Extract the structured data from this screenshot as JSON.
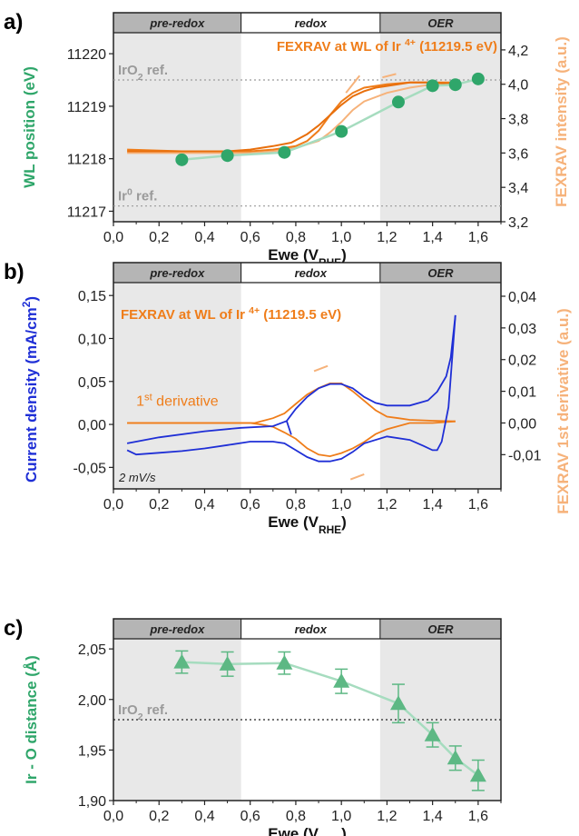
{
  "colors": {
    "green": "#2fa66a",
    "light_green": "#a6dcbf",
    "green_tri": "#5db884",
    "orange": "#ef7d1a",
    "light_orange": "#f6b27a",
    "blue": "#1f2fd6",
    "shade": "#e8e8e8",
    "region_bar": "#b5b5b5",
    "ref_gray": "#9a9a9a"
  },
  "regions": {
    "labels": [
      "pre-redox",
      "redox",
      "OER"
    ],
    "bounds": [
      [
        0.0,
        0.56
      ],
      [
        0.56,
        1.17
      ],
      [
        1.17,
        1.7
      ]
    ]
  },
  "chart_data": [
    {
      "panel": "a)",
      "type": "scatter",
      "xlabel": "Ewe (V",
      "xlabel_sub": "RHE",
      "xlabel_close": ")",
      "ylabel": "WL position (eV)",
      "y2label": "FEXRAV intensity (a.u.)",
      "xlim": [
        0.0,
        1.7
      ],
      "ylim": [
        11216.8,
        11220.4
      ],
      "y2lim": [
        3.2,
        4.3
      ],
      "xticks": [
        "0,0",
        "0,2",
        "0,4",
        "0,6",
        "0,8",
        "1,0",
        "1,2",
        "1,4",
        "1,6"
      ],
      "xtick_values": [
        0.0,
        0.2,
        0.4,
        0.6,
        0.8,
        1.0,
        1.2,
        1.4,
        1.6
      ],
      "yticks": [
        "11217",
        "11218",
        "11219",
        "11220"
      ],
      "ytick_values": [
        11217,
        11218,
        11219,
        11220
      ],
      "y2ticks": [
        "3,2",
        "3,4",
        "3,6",
        "3,8",
        "4,0",
        "4,2"
      ],
      "y2tick_values": [
        3.2,
        3.4,
        3.6,
        3.8,
        4.0,
        4.2
      ],
      "annotation": "FEXRAV at WL of Ir",
      "annotation_sup": "4+",
      "annotation_end": "(11219.5 eV)",
      "refs": [
        {
          "label": "IrO",
          "sub": "2",
          "label_end": " ref.",
          "sup": "",
          "y": 11219.5
        },
        {
          "label": "Ir",
          "sub": "",
          "label_end": " ref.",
          "sup": "0",
          "y": 11217.1
        }
      ],
      "series": [
        {
          "x": [
            0.3,
            0.5,
            0.75,
            1.0,
            1.25,
            1.4,
            1.5,
            1.6
          ],
          "y": [
            11217.98,
            11218.06,
            11218.12,
            11218.52,
            11219.08,
            11219.39,
            11219.41,
            11219.52
          ]
        }
      ],
      "fexrav_y2": {
        "curve1": {
          "x": [
            0.06,
            0.3,
            0.5,
            0.6,
            0.7,
            0.78,
            0.85,
            0.9,
            0.95,
            1.0,
            1.05,
            1.1,
            1.15,
            1.2,
            1.3,
            1.4,
            1.5
          ],
          "y": [
            3.61,
            3.61,
            3.61,
            3.62,
            3.64,
            3.66,
            3.71,
            3.76,
            3.82,
            3.88,
            3.93,
            3.96,
            3.98,
            3.99,
            4.01,
            4.01,
            4.0
          ]
        },
        "curve2": {
          "x": [
            1.5,
            1.4,
            1.3,
            1.2,
            1.1,
            1.05,
            1.0,
            0.95,
            0.9,
            0.85,
            0.8,
            0.75,
            0.7,
            0.6,
            0.5,
            0.3,
            0.06
          ],
          "y": [
            4.01,
            4.01,
            4.01,
            4.0,
            3.98,
            3.95,
            3.9,
            3.82,
            3.73,
            3.67,
            3.64,
            3.63,
            3.62,
            3.61,
            3.61,
            3.61,
            3.62
          ]
        },
        "curve3": {
          "x": [
            0.06,
            0.3,
            0.5,
            0.6,
            0.7,
            0.8,
            0.9,
            0.95,
            1.0,
            1.05,
            1.1,
            1.2,
            1.3,
            1.4,
            1.5
          ],
          "y": [
            3.6,
            3.6,
            3.6,
            3.6,
            3.61,
            3.63,
            3.67,
            3.72,
            3.78,
            3.85,
            3.9,
            3.95,
            3.98,
            4.0,
            4.0
          ]
        }
      }
    },
    {
      "panel": "b)",
      "type": "line",
      "xlabel": "Ewe (V",
      "xlabel_sub": "RHE",
      "xlabel_close": ")",
      "ylabel": "Current density (mA/cm",
      "ylabel_sup": "2",
      "ylabel_close": ")",
      "y2label": "FEXRAV 1st derivative (a.u.)",
      "xlim": [
        0.0,
        1.7
      ],
      "ylim": [
        -0.075,
        0.165
      ],
      "y2lim": [
        -0.0208,
        0.0443
      ],
      "xticks": [
        "0,0",
        "0,2",
        "0,4",
        "0,6",
        "0,8",
        "1,0",
        "1,2",
        "1,4",
        "1,6"
      ],
      "xtick_values": [
        0.0,
        0.2,
        0.4,
        0.6,
        0.8,
        1.0,
        1.2,
        1.4,
        1.6
      ],
      "yticks": [
        "-0,05",
        "0,00",
        "0,05",
        "0,10",
        "0,15"
      ],
      "ytick_values": [
        -0.05,
        0.0,
        0.05,
        0.1,
        0.15
      ],
      "y2ticks": [
        "-0,01",
        "0,00",
        "0,01",
        "0,02",
        "0,03",
        "0,04"
      ],
      "y2tick_values": [
        -0.01,
        0.0,
        0.01,
        0.02,
        0.03,
        0.04
      ],
      "annotation": "FEXRAV at WL of Ir",
      "annotation_sup": "4+",
      "annotation_end": "(11219.5 eV)",
      "derivative_label": "1",
      "derivative_sup": "st",
      "derivative_end": " derivative",
      "scan_rate": "2 mV/s",
      "cv": {
        "anodic": {
          "x": [
            0.06,
            0.2,
            0.4,
            0.56,
            0.7,
            0.76,
            0.8,
            0.85,
            0.9,
            0.95,
            1.0,
            1.05,
            1.1,
            1.15,
            1.2,
            1.3,
            1.38,
            1.42,
            1.46,
            1.48,
            1.5
          ],
          "y": [
            -0.022,
            -0.015,
            -0.008,
            -0.004,
            -0.002,
            0.004,
            0.018,
            0.032,
            0.042,
            0.047,
            0.047,
            0.042,
            0.032,
            0.025,
            0.022,
            0.022,
            0.028,
            0.038,
            0.056,
            0.078,
            0.127
          ]
        },
        "cathodic": {
          "x": [
            1.5,
            1.47,
            1.44,
            1.42,
            1.4,
            1.36,
            1.3,
            1.2,
            1.1,
            1.05,
            1.0,
            0.95,
            0.9,
            0.85,
            0.8,
            0.75,
            0.7,
            0.6,
            0.5,
            0.4,
            0.3,
            0.2,
            0.1,
            0.06
          ],
          "y": [
            0.127,
            0.02,
            -0.02,
            -0.03,
            -0.03,
            -0.025,
            -0.018,
            -0.014,
            -0.022,
            -0.032,
            -0.04,
            -0.043,
            -0.043,
            -0.038,
            -0.03,
            -0.022,
            -0.02,
            -0.02,
            -0.024,
            -0.028,
            -0.031,
            -0.033,
            -0.035,
            -0.03
          ]
        },
        "start_branch": {
          "x": [
            0.76,
            0.78
          ],
          "y": [
            0.004,
            -0.012
          ]
        }
      },
      "derivative": {
        "anodic": {
          "x": [
            0.06,
            0.2,
            0.4,
            0.5,
            0.56,
            0.62,
            0.7,
            0.75,
            0.8,
            0.85,
            0.9,
            0.95,
            1.0,
            1.05,
            1.1,
            1.15,
            1.2,
            1.25,
            1.3,
            1.4,
            1.5
          ],
          "y": [
            0.0,
            0.0,
            0.0,
            0.0,
            0.0,
            0.0,
            0.0015,
            0.003,
            0.006,
            0.009,
            0.011,
            0.0125,
            0.0125,
            0.01,
            0.007,
            0.004,
            0.002,
            0.0015,
            0.001,
            0.0007,
            0.0005
          ]
        },
        "cathodic": {
          "x": [
            1.5,
            1.4,
            1.3,
            1.2,
            1.15,
            1.1,
            1.05,
            1.0,
            0.95,
            0.9,
            0.85,
            0.8,
            0.75,
            0.7,
            0.65,
            0.6,
            0.5,
            0.4,
            0.2,
            0.06
          ],
          "y": [
            0.0005,
            0.0,
            0.0,
            -0.002,
            -0.0035,
            -0.006,
            -0.008,
            -0.0095,
            -0.0105,
            -0.01,
            -0.008,
            -0.005,
            -0.003,
            -0.0012,
            -0.0005,
            0.0,
            0.0,
            0.0,
            0.0,
            0.0
          ]
        }
      }
    },
    {
      "panel": "c)",
      "type": "scatter",
      "xlabel": "Ewe (V",
      "xlabel_sub": "RHE",
      "xlabel_close": ")",
      "ylabel": "Ir - O distance (Å)",
      "xlim": [
        0.0,
        1.7
      ],
      "ylim": [
        1.9,
        2.06
      ],
      "xticks": [
        "0,0",
        "0,2",
        "0,4",
        "0,6",
        "0,8",
        "1,0",
        "1,2",
        "1,4",
        "1,6"
      ],
      "xtick_values": [
        0.0,
        0.2,
        0.4,
        0.6,
        0.8,
        1.0,
        1.2,
        1.4,
        1.6
      ],
      "yticks": [
        "1,90",
        "1,95",
        "2,00",
        "2,05"
      ],
      "ytick_values": [
        1.9,
        1.95,
        2.0,
        2.05
      ],
      "refs": [
        {
          "label": "IrO",
          "sub": "2",
          "label_end": " ref.",
          "sup": "",
          "y": 1.98
        }
      ],
      "series": [
        {
          "x": [
            0.3,
            0.5,
            0.75,
            1.0,
            1.25,
            1.4,
            1.5,
            1.6
          ],
          "y": [
            2.037,
            2.035,
            2.036,
            2.018,
            1.996,
            1.965,
            1.942,
            1.925
          ],
          "err": [
            0.011,
            0.012,
            0.011,
            0.012,
            0.019,
            0.012,
            0.012,
            0.015
          ]
        }
      ]
    }
  ]
}
